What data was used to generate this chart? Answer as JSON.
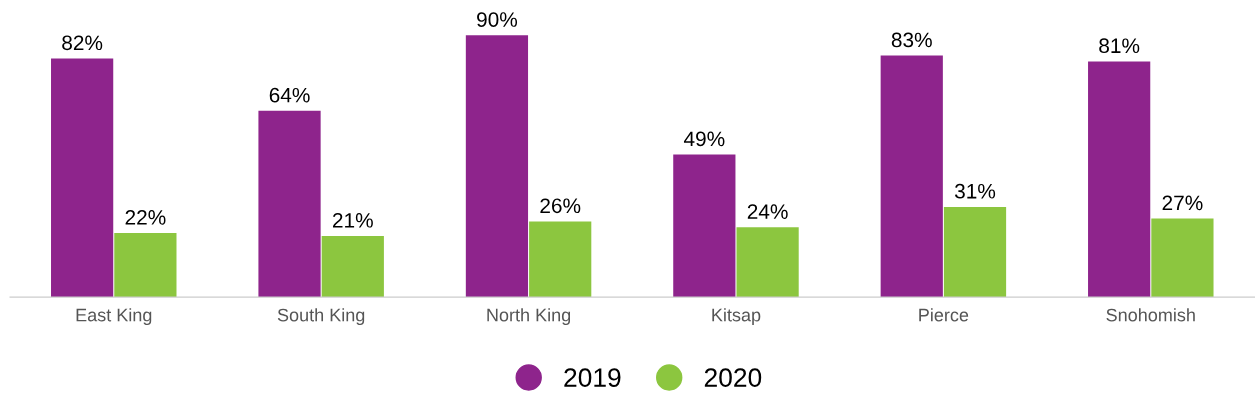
{
  "chart_data": {
    "type": "bar",
    "categories": [
      "East King",
      "South King",
      "North King",
      "Kitsap",
      "Pierce",
      "Snohomish"
    ],
    "series": [
      {
        "name": "2019",
        "color": "#8e248c",
        "values": [
          82,
          64,
          90,
          49,
          83,
          81
        ],
        "value_labels": [
          "82%",
          "64%",
          "90%",
          "49%",
          "83%",
          "81%"
        ]
      },
      {
        "name": "2020",
        "color": "#8cc63f",
        "values": [
          22,
          21,
          26,
          24,
          31,
          27
        ],
        "value_labels": [
          "22%",
          "21%",
          "26%",
          "24%",
          "31%",
          "27%"
        ]
      }
    ],
    "tick_labels": "x",
    "grid": false,
    "legend": "bottom",
    "marker": "circle"
  }
}
